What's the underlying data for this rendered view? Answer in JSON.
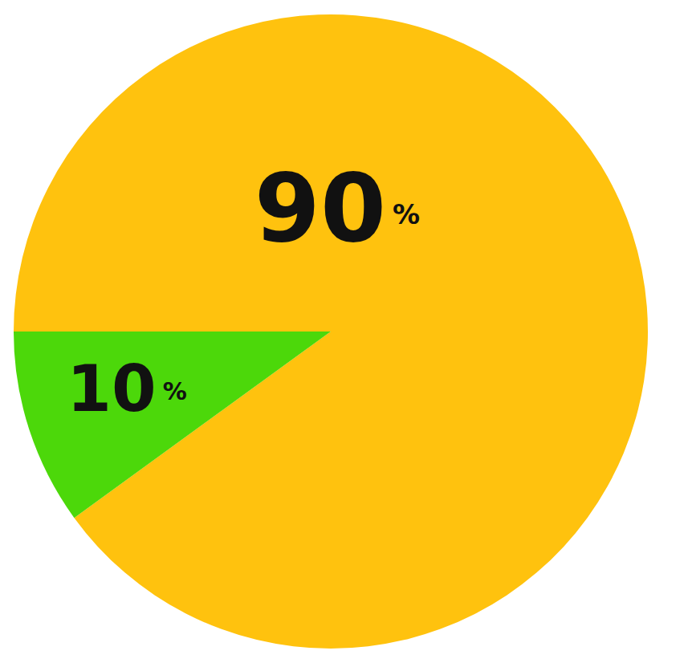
{
  "chart_data": {
    "type": "pie",
    "values": [
      90,
      10
    ],
    "value_labels": [
      "90%",
      "10%"
    ],
    "colors": [
      "#ffc20e",
      "#4cd80a"
    ],
    "data_labels": true
  }
}
